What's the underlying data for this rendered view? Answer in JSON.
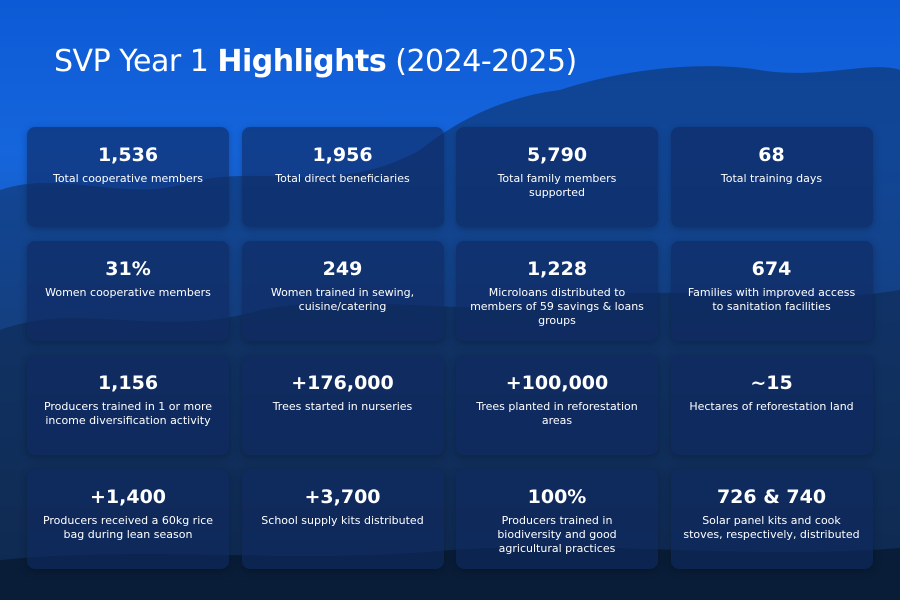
{
  "header": {
    "title_prefix": "SVP Year 1",
    "title_bold": "Highlights",
    "title_suffix": "(2024-2025)"
  },
  "cards": [
    {
      "value": "1,536",
      "label": "Total cooperative members"
    },
    {
      "value": "1,956",
      "label": "Total direct beneficiaries"
    },
    {
      "value": "5,790",
      "label": "Total family members supported"
    },
    {
      "value": "68",
      "label": "Total training days"
    },
    {
      "value": "31%",
      "label": "Women cooperative members"
    },
    {
      "value": "249",
      "label": "Women trained in sewing, cuisine/catering"
    },
    {
      "value": "1,228",
      "label": "Microloans distributed to members of 59 savings & loans groups"
    },
    {
      "value": "674",
      "label": "Families with improved access to sanitation facilities"
    },
    {
      "value": "1,156",
      "label": "Producers trained in 1 or more income diversification activity"
    },
    {
      "value": "+176,000",
      "label": "Trees started in nurseries"
    },
    {
      "value": "+100,000",
      "label": "Trees planted in reforestation areas"
    },
    {
      "value": "~15",
      "label": "Hectares of reforestation land"
    },
    {
      "value": "+1,400",
      "label": "Producers received a 60kg rice bag during lean season"
    },
    {
      "value": "+3,700",
      "label": "School supply kits distributed"
    },
    {
      "value": "100%",
      "label": "Producers trained in biodiversity and good agricultural practices"
    },
    {
      "value": "726 & 740",
      "label": "Solar panel kits and cook stoves, respectively, distributed"
    }
  ]
}
